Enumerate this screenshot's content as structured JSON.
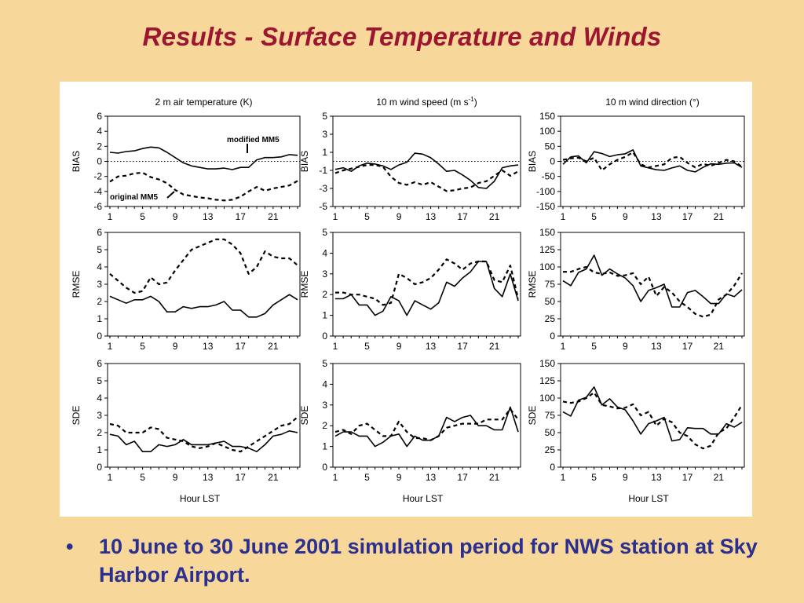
{
  "title": "Results - Surface Temperature and Winds",
  "bullet": {
    "mark": "•",
    "text": "10 June to 30 June 2001 simulation period for NWS station at Sky Harbor Airport."
  },
  "colors": {
    "title": "#9c1531",
    "bullet": "#2b2f8f",
    "background": "#f7d89a",
    "line": "#000000"
  },
  "column_titles": [
    "2 m air temperature (K)",
    "10 m wind speed (m s-1)",
    "10 m wind direction (°)"
  ],
  "x_ticks": [
    1,
    5,
    9,
    13,
    17,
    21
  ],
  "x_label": "Hour LST",
  "annotations": {
    "modified": "modified MM5",
    "original": "original MM5"
  },
  "chart_data": [
    {
      "type": "line",
      "title": "2 m air temperature (K)",
      "ylabel": "BIAS",
      "ylim": [
        -6,
        6
      ],
      "yticks": [
        -6,
        -4,
        -2,
        0,
        2,
        4,
        6
      ],
      "zero_line": true,
      "x": [
        1,
        2,
        3,
        4,
        5,
        6,
        7,
        8,
        9,
        10,
        11,
        12,
        13,
        14,
        15,
        16,
        17,
        18,
        19,
        20,
        21,
        22,
        23,
        24
      ],
      "series": [
        {
          "name": "modified MM5",
          "style": "solid",
          "values": [
            1.2,
            1.1,
            1.3,
            1.4,
            1.7,
            1.9,
            1.8,
            1.2,
            0.5,
            -0.2,
            -0.6,
            -0.8,
            -1.0,
            -1.0,
            -0.9,
            -1.1,
            -0.8,
            -0.8,
            0.2,
            0.5,
            0.5,
            0.6,
            0.9,
            0.8
          ]
        },
        {
          "name": "original MM5",
          "style": "dashed",
          "values": [
            -2.7,
            -2.0,
            -1.9,
            -1.6,
            -1.5,
            -2.1,
            -2.4,
            -2.9,
            -3.8,
            -4.4,
            -4.6,
            -4.8,
            -4.9,
            -5.1,
            -5.2,
            -5.1,
            -4.7,
            -4.0,
            -3.4,
            -3.9,
            -3.6,
            -3.4,
            -3.2,
            -2.6
          ]
        }
      ]
    },
    {
      "type": "line",
      "title": "10 m wind speed (m s-1)",
      "ylabel": "BIAS",
      "ylim": [
        -5,
        5
      ],
      "yticks": [
        -5,
        -3,
        -1,
        1,
        3,
        5
      ],
      "zero_line": true,
      "x": [
        1,
        2,
        3,
        4,
        5,
        6,
        7,
        8,
        9,
        10,
        11,
        12,
        13,
        14,
        15,
        16,
        17,
        18,
        19,
        20,
        21,
        22,
        23,
        24
      ],
      "series": [
        {
          "name": "modified MM5",
          "style": "solid",
          "values": [
            -0.9,
            -0.7,
            -1.1,
            -0.5,
            -0.2,
            -0.3,
            -0.5,
            -0.9,
            -0.4,
            -0.1,
            0.9,
            0.8,
            0.4,
            -0.3,
            -1.1,
            -1.0,
            -1.5,
            -2.1,
            -2.9,
            -3.0,
            -2.2,
            -0.7,
            -0.5,
            -0.4
          ]
        },
        {
          "name": "original MM5",
          "style": "dashed",
          "values": [
            -1.3,
            -1.0,
            -0.8,
            -0.6,
            -0.4,
            -0.4,
            -0.6,
            -1.7,
            -2.4,
            -2.6,
            -2.3,
            -2.6,
            -2.3,
            -2.8,
            -3.3,
            -3.2,
            -3.0,
            -2.9,
            -2.4,
            -2.2,
            -1.6,
            -1.0,
            -1.6,
            -1.1
          ]
        }
      ]
    },
    {
      "type": "line",
      "title": "10 m wind direction (°)",
      "ylabel": "BIAS",
      "ylim": [
        -150,
        150
      ],
      "yticks": [
        -150,
        -100,
        -50,
        0,
        50,
        100,
        150
      ],
      "zero_line": true,
      "x": [
        1,
        2,
        3,
        4,
        5,
        6,
        7,
        8,
        9,
        10,
        11,
        12,
        13,
        14,
        15,
        16,
        17,
        18,
        19,
        20,
        21,
        22,
        23,
        24
      ],
      "series": [
        {
          "name": "modified MM5",
          "style": "solid",
          "values": [
            -10,
            15,
            18,
            -5,
            32,
            26,
            16,
            22,
            25,
            38,
            -15,
            -22,
            -28,
            -30,
            -22,
            -15,
            -30,
            -35,
            -20,
            -8,
            -10,
            -6,
            -5,
            -20
          ]
        },
        {
          "name": "original MM5",
          "style": "dashed",
          "values": [
            5,
            10,
            12,
            0,
            12,
            -30,
            -10,
            5,
            15,
            30,
            -10,
            -20,
            -15,
            -10,
            12,
            15,
            -5,
            -20,
            -8,
            -15,
            -5,
            5,
            0,
            -18
          ]
        }
      ]
    },
    {
      "type": "line",
      "ylabel": "RMSE",
      "ylim": [
        0,
        6
      ],
      "yticks": [
        0,
        1,
        2,
        3,
        4,
        5,
        6
      ],
      "x": [
        1,
        2,
        3,
        4,
        5,
        6,
        7,
        8,
        9,
        10,
        11,
        12,
        13,
        14,
        15,
        16,
        17,
        18,
        19,
        20,
        21,
        22,
        23,
        24
      ],
      "series": [
        {
          "name": "modified MM5",
          "style": "solid",
          "values": [
            2.3,
            2.1,
            1.9,
            2.1,
            2.1,
            2.3,
            2.0,
            1.4,
            1.4,
            1.7,
            1.6,
            1.7,
            1.7,
            1.8,
            2.0,
            1.5,
            1.5,
            1.1,
            1.1,
            1.3,
            1.8,
            2.1,
            2.4,
            2.1
          ]
        },
        {
          "name": "original MM5",
          "style": "dashed",
          "values": [
            3.6,
            3.2,
            2.8,
            2.5,
            2.6,
            3.4,
            3.0,
            3.1,
            3.8,
            4.4,
            5.0,
            5.2,
            5.4,
            5.6,
            5.6,
            5.3,
            4.8,
            3.6,
            4.0,
            4.9,
            4.6,
            4.5,
            4.5,
            4.1
          ]
        }
      ]
    },
    {
      "type": "line",
      "ylabel": "RMSE",
      "ylim": [
        0,
        5
      ],
      "yticks": [
        0,
        1,
        2,
        3,
        4,
        5
      ],
      "x": [
        1,
        2,
        3,
        4,
        5,
        6,
        7,
        8,
        9,
        10,
        11,
        12,
        13,
        14,
        15,
        16,
        17,
        18,
        19,
        20,
        21,
        22,
        23,
        24
      ],
      "series": [
        {
          "name": "modified MM5",
          "style": "solid",
          "values": [
            1.8,
            1.8,
            2.0,
            1.5,
            1.5,
            1.0,
            1.2,
            1.9,
            1.7,
            1.0,
            1.7,
            1.5,
            1.3,
            1.6,
            2.6,
            2.4,
            2.8,
            3.1,
            3.6,
            3.6,
            2.3,
            1.9,
            3.0,
            1.7
          ]
        },
        {
          "name": "original MM5",
          "style": "dashed",
          "values": [
            2.1,
            2.1,
            2.0,
            2.0,
            1.9,
            1.8,
            1.5,
            1.6,
            3.0,
            2.8,
            2.5,
            2.6,
            2.8,
            3.2,
            3.7,
            3.5,
            3.2,
            3.5,
            3.6,
            3.6,
            2.7,
            2.6,
            3.4,
            1.8
          ]
        }
      ]
    },
    {
      "type": "line",
      "ylabel": "RMSE",
      "ylim": [
        0,
        150
      ],
      "yticks": [
        0,
        25,
        50,
        75,
        100,
        125,
        150
      ],
      "x": [
        1,
        2,
        3,
        4,
        5,
        6,
        7,
        8,
        9,
        10,
        11,
        12,
        13,
        14,
        15,
        16,
        17,
        18,
        19,
        20,
        21,
        22,
        23,
        24
      ],
      "series": [
        {
          "name": "modified MM5",
          "style": "solid",
          "values": [
            80,
            73,
            92,
            97,
            117,
            88,
            97,
            90,
            84,
            73,
            50,
            66,
            70,
            75,
            42,
            42,
            63,
            66,
            57,
            47,
            47,
            61,
            57,
            67
          ]
        },
        {
          "name": "original MM5",
          "style": "dashed",
          "values": [
            93,
            93,
            97,
            100,
            92,
            90,
            92,
            87,
            88,
            91,
            75,
            86,
            58,
            71,
            63,
            50,
            42,
            32,
            28,
            31,
            53,
            60,
            73,
            91
          ]
        }
      ]
    },
    {
      "type": "line",
      "ylabel": "SDE",
      "ylim": [
        0,
        6
      ],
      "yticks": [
        0,
        1,
        2,
        3,
        4,
        5,
        6
      ],
      "x": [
        1,
        2,
        3,
        4,
        5,
        6,
        7,
        8,
        9,
        10,
        11,
        12,
        13,
        14,
        15,
        16,
        17,
        18,
        19,
        20,
        21,
        22,
        23,
        24
      ],
      "series": [
        {
          "name": "modified MM5",
          "style": "solid",
          "values": [
            1.9,
            1.8,
            1.3,
            1.5,
            0.9,
            0.9,
            1.3,
            1.2,
            1.3,
            1.6,
            1.3,
            1.3,
            1.3,
            1.4,
            1.5,
            1.2,
            1.2,
            1.1,
            0.9,
            1.3,
            1.8,
            1.9,
            2.1,
            2.0
          ]
        },
        {
          "name": "original MM5",
          "style": "dashed",
          "values": [
            2.5,
            2.4,
            2.0,
            2.0,
            2.0,
            2.3,
            2.2,
            1.7,
            1.6,
            1.5,
            1.2,
            1.1,
            1.2,
            1.4,
            1.2,
            1.0,
            0.9,
            1.2,
            1.5,
            1.8,
            2.1,
            2.4,
            2.5,
            2.9
          ]
        }
      ]
    },
    {
      "type": "line",
      "ylabel": "SDE",
      "ylim": [
        0,
        5
      ],
      "yticks": [
        0,
        1,
        2,
        3,
        4,
        5
      ],
      "x": [
        1,
        2,
        3,
        4,
        5,
        6,
        7,
        8,
        9,
        10,
        11,
        12,
        13,
        14,
        15,
        16,
        17,
        18,
        19,
        20,
        21,
        22,
        23,
        24
      ],
      "series": [
        {
          "name": "modified MM5",
          "style": "solid",
          "values": [
            1.5,
            1.7,
            1.7,
            1.5,
            1.5,
            1.0,
            1.2,
            1.5,
            1.6,
            1.0,
            1.5,
            1.3,
            1.3,
            1.5,
            2.4,
            2.2,
            2.4,
            2.5,
            2.0,
            2.0,
            1.8,
            1.8,
            2.9,
            1.7
          ]
        },
        {
          "name": "original MM5",
          "style": "dashed",
          "values": [
            1.7,
            1.8,
            1.6,
            2.0,
            2.1,
            1.8,
            1.5,
            1.5,
            2.2,
            1.7,
            1.4,
            1.4,
            1.3,
            1.5,
            1.9,
            2.0,
            2.1,
            2.1,
            2.1,
            2.3,
            2.3,
            2.3,
            2.8,
            2.3
          ]
        }
      ]
    },
    {
      "type": "line",
      "ylabel": "SDE",
      "ylim": [
        0,
        150
      ],
      "yticks": [
        0,
        25,
        50,
        75,
        100,
        125,
        150
      ],
      "x": [
        1,
        2,
        3,
        4,
        5,
        6,
        7,
        8,
        9,
        10,
        11,
        12,
        13,
        14,
        15,
        16,
        17,
        18,
        19,
        20,
        21,
        22,
        23,
        24
      ],
      "series": [
        {
          "name": "modified MM5",
          "style": "solid",
          "values": [
            80,
            74,
            97,
            101,
            116,
            90,
            99,
            87,
            83,
            67,
            48,
            63,
            67,
            72,
            38,
            40,
            57,
            56,
            56,
            48,
            48,
            63,
            58,
            65
          ]
        },
        {
          "name": "original MM5",
          "style": "dashed",
          "values": [
            95,
            93,
            95,
            100,
            108,
            90,
            88,
            85,
            86,
            91,
            75,
            80,
            60,
            70,
            65,
            50,
            45,
            33,
            27,
            31,
            50,
            56,
            72,
            90
          ]
        }
      ]
    }
  ]
}
